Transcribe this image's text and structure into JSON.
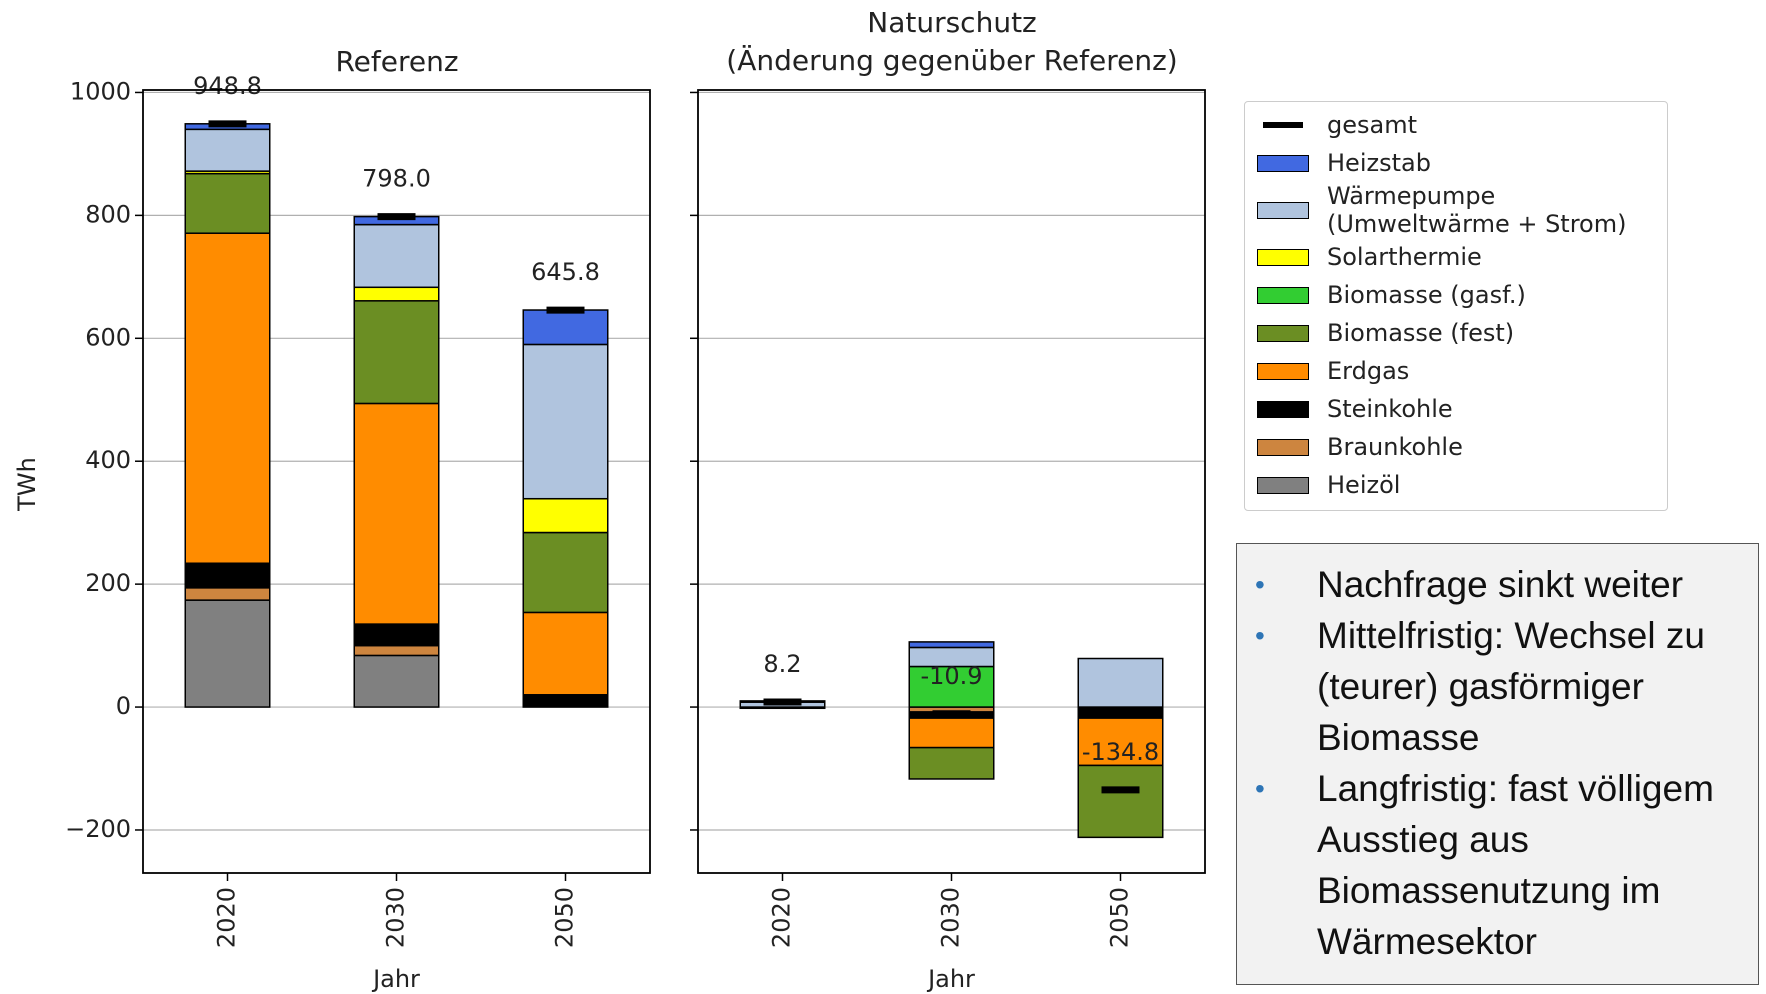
{
  "chart_data": [
    {
      "type": "bar",
      "title": "Referenz",
      "xlabel": "Jahr",
      "ylabel": "TWh",
      "categories": [
        "2020",
        "2030",
        "2050"
      ],
      "ylim": [
        -270,
        1004
      ],
      "yticks": [
        {
          "value": -200,
          "label": "−200"
        },
        0,
        200,
        400,
        600,
        800,
        1000
      ],
      "ytick_labels": true,
      "grid": true,
      "series": [
        {
          "name": "Heizöl",
          "color": "#808080",
          "values": [
            174,
            84,
            0
          ]
        },
        {
          "name": "Braunkohle",
          "color": "#cd853f",
          "values": [
            20,
            16,
            0
          ]
        },
        {
          "name": "Steinkohle",
          "color": "#000000",
          "values": [
            40,
            35,
            20
          ]
        },
        {
          "name": "Erdgas",
          "color": "#ff8c00",
          "values": [
            537,
            359,
            134
          ]
        },
        {
          "name": "Biomasse (fest)",
          "color": "#6b8e23",
          "values": [
            97,
            167,
            130
          ]
        },
        {
          "name": "Biomasse (gasf.)",
          "color": "#32cd32",
          "values": [
            0,
            0,
            0
          ]
        },
        {
          "name": "Solarthermie",
          "color": "#ffff00",
          "values": [
            4,
            22,
            55
          ]
        },
        {
          "name": "Wärmepumpe\n(Umweltwärme + Strom)",
          "color": "#b0c4de",
          "values": [
            68,
            102,
            251
          ]
        },
        {
          "name": "Heizstab",
          "color": "#4169e1",
          "values": [
            9,
            13,
            56
          ]
        }
      ],
      "total": {
        "name": "gesamt",
        "color": "#000000",
        "values": [
          948.8,
          798.0,
          645.8
        ],
        "value_labels": [
          "948.8",
          "798.0",
          "645.8"
        ]
      }
    },
    {
      "type": "bar",
      "title": "Naturschutz\n(Änderung gegenüber Referenz)",
      "xlabel": "Jahr",
      "categories": [
        "2020",
        "2030",
        "2050"
      ],
      "ylim": [
        -270,
        1004
      ],
      "yticks": [
        -200,
        0,
        200,
        400,
        600,
        800,
        1000
      ],
      "ytick_labels": false,
      "grid": true,
      "series": [
        {
          "name": "Heizöl",
          "color": "#808080",
          "values": [
            0,
            0,
            0
          ]
        },
        {
          "name": "Braunkohle",
          "color": "#cd853f",
          "values": [
            0,
            -8,
            0
          ]
        },
        {
          "name": "Steinkohle",
          "color": "#000000",
          "values": [
            0,
            -10,
            -18
          ]
        },
        {
          "name": "Erdgas",
          "color": "#ff8c00",
          "values": [
            -2,
            -48,
            -77
          ]
        },
        {
          "name": "Biomasse (fest)",
          "color": "#6b8e23",
          "values": [
            0,
            -51,
            -117
          ]
        },
        {
          "name": "Biomasse (gasf.)",
          "color": "#32cd32",
          "values": [
            0,
            66,
            0
          ]
        },
        {
          "name": "Solarthermie",
          "color": "#ffff00",
          "values": [
            0,
            0,
            0
          ]
        },
        {
          "name": "Wärmepumpe\n(Umweltwärme + Strom)",
          "color": "#b0c4de",
          "values": [
            8,
            31,
            79
          ]
        },
        {
          "name": "Heizstab",
          "color": "#4169e1",
          "values": [
            2,
            9,
            0
          ]
        }
      ],
      "total": {
        "name": "gesamt",
        "color": "#000000",
        "values": [
          8.2,
          -10.9,
          -134.8
        ],
        "value_labels": [
          "8.2",
          "-10.9",
          "-134.8"
        ]
      }
    }
  ],
  "text_box": {
    "bullets": [
      "Nachfrage sinkt weiter",
      "Mittelfristig: Wechsel zu (teurer) gasförmiger Biomasse",
      "Langfristig: fast völligem Ausstieg aus Biomassenutzung im Wärmesektor"
    ]
  }
}
